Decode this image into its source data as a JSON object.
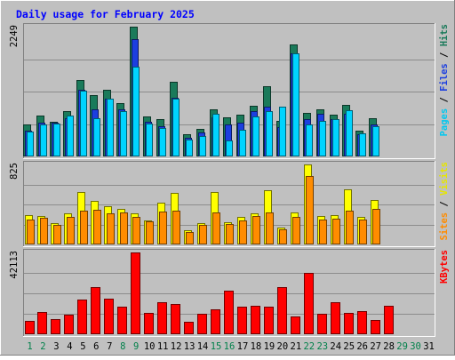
{
  "chart_data": {
    "type": "bar",
    "title": "Daily usage for February 2025",
    "categories": [
      "1",
      "2",
      "3",
      "4",
      "5",
      "6",
      "7",
      "8",
      "9",
      "10",
      "11",
      "12",
      "13",
      "14",
      "15",
      "16",
      "17",
      "18",
      "19",
      "20",
      "21",
      "22",
      "23",
      "24",
      "25",
      "26",
      "27",
      "28",
      "29",
      "30",
      "31"
    ],
    "weekend_days": [
      "1",
      "2",
      "8",
      "9",
      "15",
      "16",
      "22",
      "23",
      "29",
      "30"
    ],
    "panels": [
      {
        "id": "hits",
        "max_label": "2249",
        "ymax": 2249,
        "right_label_parts": [
          "Pages",
          " / ",
          "Files",
          " / ",
          "Hits"
        ],
        "series": [
          {
            "name": "Hits",
            "color": "#1a7a5a",
            "values": [
              560,
              710,
              600,
              780,
              1330,
              1070,
              1160,
              920,
              2249,
              700,
              640,
              1300,
              380,
              470,
              810,
              680,
              720,
              880,
              1210,
              620,
              1940,
              760,
              810,
              720,
              890,
              450,
              670,
              0,
              0,
              0,
              0
            ]
          },
          {
            "name": "Files",
            "color": "#1c3fe0",
            "values": [
              450,
              590,
              590,
              660,
              1150,
              820,
              1000,
              820,
              2040,
              600,
              520,
              1010,
              320,
              410,
              680,
              550,
              580,
              790,
              870,
              510,
              1780,
              640,
              740,
              650,
              740,
              380,
              550,
              0,
              0,
              0,
              0
            ]
          },
          {
            "name": "Pages",
            "color": "#00d4ff",
            "values": [
              430,
              560,
              570,
              710,
              1140,
              660,
              1000,
              790,
              1560,
              570,
              490,
              1000,
              300,
              360,
              740,
              270,
              460,
              700,
              780,
              860,
              1780,
              560,
              620,
              640,
              800,
              400,
              530,
              0,
              0,
              0,
              0
            ]
          }
        ]
      },
      {
        "id": "visits",
        "max_label": "825",
        "ymax": 825,
        "right_label_parts": [
          "Sites",
          " / ",
          "Visits"
        ],
        "series": [
          {
            "name": "Visits",
            "color": "#ffff00",
            "values": [
              300,
              295,
              220,
              320,
              540,
              450,
              390,
              365,
              320,
              250,
              430,
              530,
              150,
              220,
              545,
              230,
              280,
              320,
              560,
              175,
              330,
              825,
              295,
              300,
              570,
              280,
              460,
              0,
              0,
              0,
              0
            ]
          },
          {
            "name": "Sites",
            "color": "#ff8c00",
            "values": [
              260,
              275,
              205,
              280,
              350,
              360,
              325,
              330,
              280,
              235,
              340,
              350,
              130,
              200,
              330,
              215,
              245,
              295,
              330,
              155,
              285,
              710,
              255,
              265,
              350,
              260,
              365,
              0,
              0,
              0,
              0
            ]
          }
        ]
      },
      {
        "id": "kbytes",
        "max_label": "42113",
        "ymax": 42113,
        "right_label_parts": [
          "KBytes"
        ],
        "series": [
          {
            "name": "KBytes",
            "color": "#ff0000",
            "values": [
              7000,
              11400,
              7900,
              9900,
              17700,
              24400,
              18300,
              14400,
              42113,
              11000,
              16600,
              15400,
              6400,
              10600,
              12700,
              22500,
              14400,
              14700,
              14200,
              24200,
              9200,
              31700,
              10600,
              16500,
              11200,
              11800,
              7300,
              14800,
              0,
              0,
              0
            ]
          }
        ]
      }
    ]
  }
}
